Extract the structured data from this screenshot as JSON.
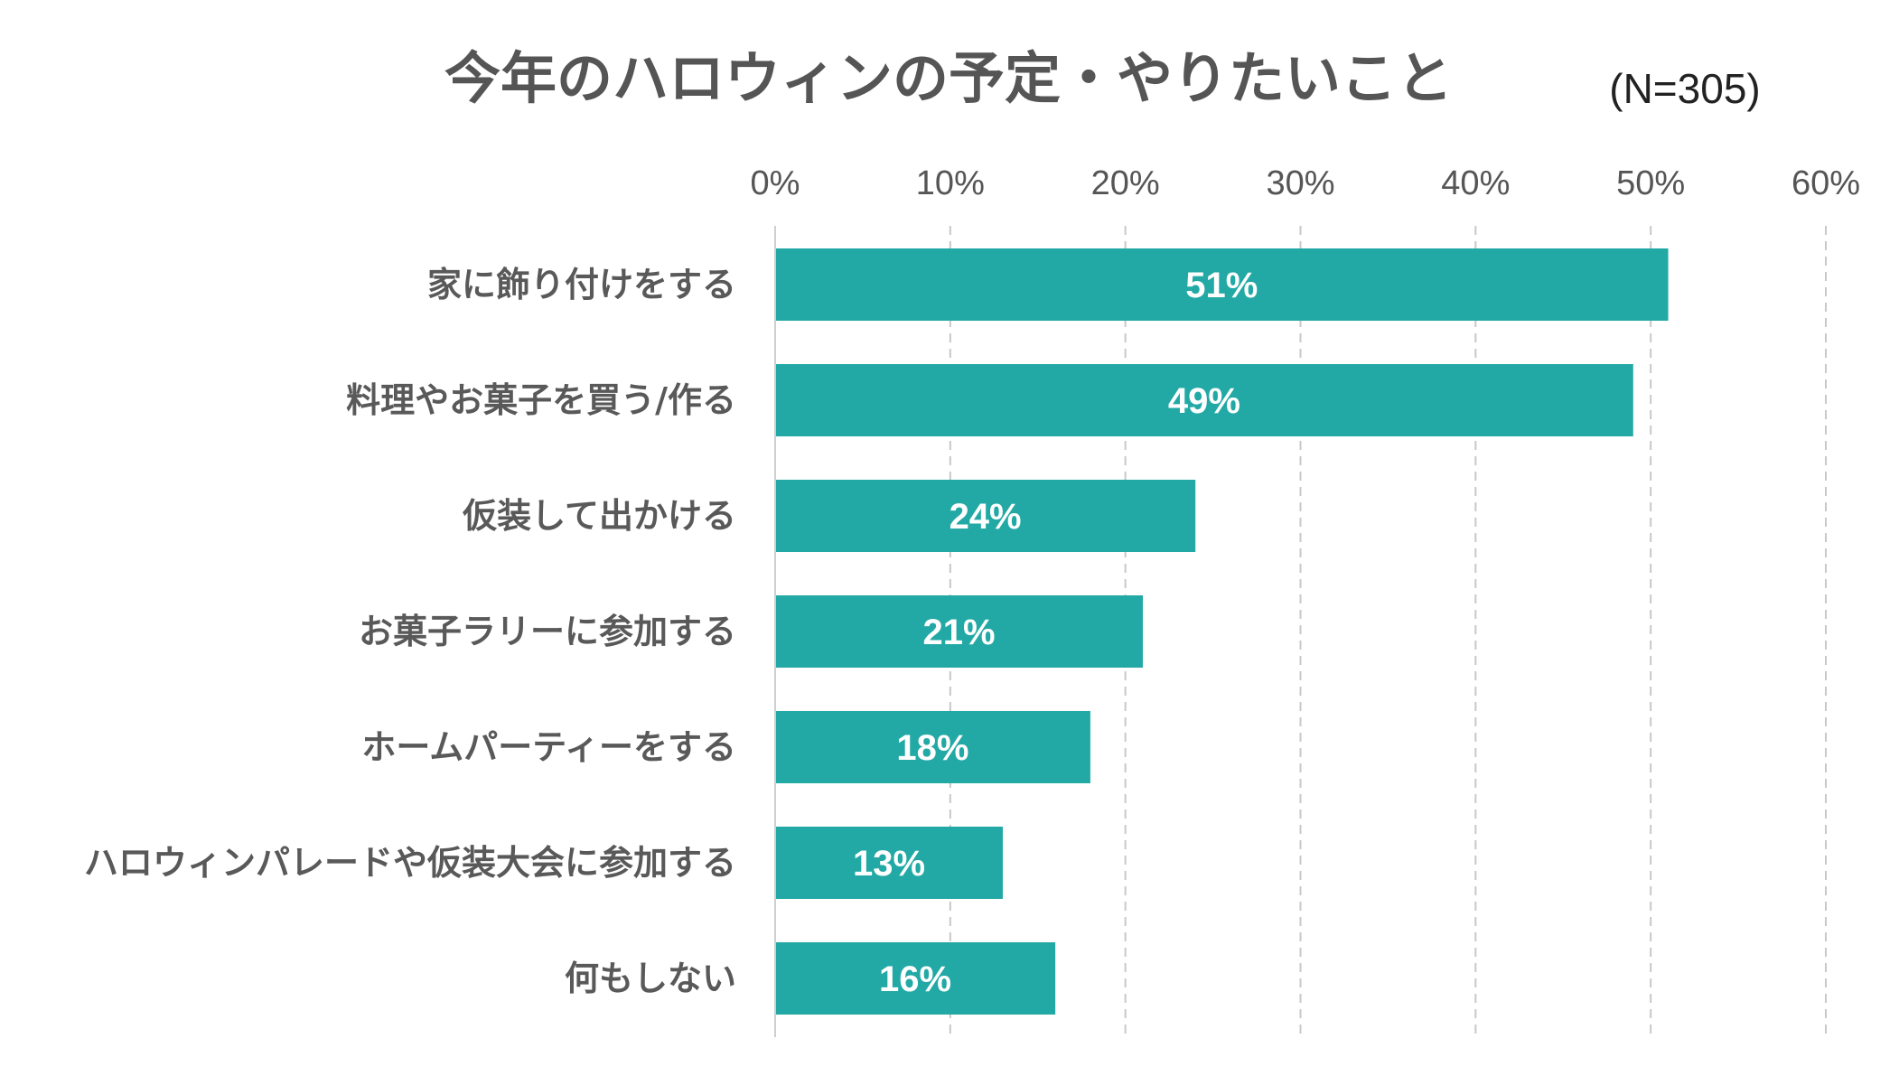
{
  "chart_data": {
    "type": "bar",
    "orientation": "horizontal",
    "title": "今年のハロウィンの予定・やりたいこと",
    "sample_note": "(N=305)",
    "categories": [
      "家に飾り付けをする",
      "料理やお菓子を買う/作る",
      "仮装して出かける",
      "お菓子ラリーに参加する",
      "ホームパーティーをする",
      "ハロウィンパレードや仮装大会に参加する",
      "何もしない"
    ],
    "values": [
      51,
      49,
      24,
      21,
      18,
      13,
      16
    ],
    "data_labels": [
      "51%",
      "49%",
      "24%",
      "21%",
      "18%",
      "13%",
      "16%"
    ],
    "xlim": [
      0,
      60
    ],
    "x_ticks": [
      "0%",
      "10%",
      "20%",
      "30%",
      "40%",
      "50%",
      "60%"
    ],
    "x_axis_position": "top",
    "grid": "vertical dashed",
    "legend": "none",
    "bar_color": "#22a9a5"
  }
}
